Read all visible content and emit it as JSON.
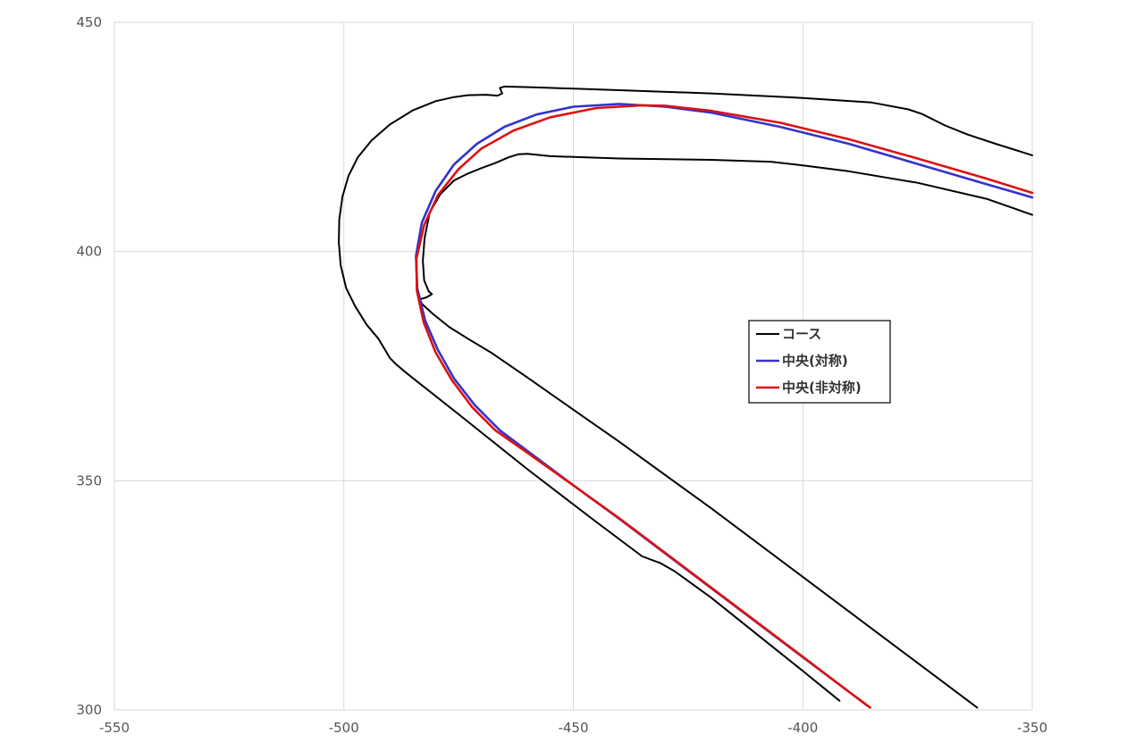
{
  "chart_data": {
    "type": "line",
    "xlim": [
      -550,
      -350
    ],
    "ylim": [
      300,
      450
    ],
    "x_ticks": [
      "-550",
      "-500",
      "-450",
      "-400",
      "-350"
    ],
    "y_ticks": [
      "450",
      "400",
      "350",
      "300"
    ],
    "grid": true,
    "legend_position": "center-right",
    "series": [
      {
        "name": "コース",
        "color": "#000000",
        "segments": [
          [
            [
              -350,
              421
            ],
            [
              -358,
              423.5
            ],
            [
              -364,
              425.5
            ],
            [
              -369,
              427.5
            ],
            [
              -374,
              430
            ],
            [
              -377,
              431
            ],
            [
              -385,
              432.5
            ],
            [
              -400,
              433.5
            ],
            [
              -420,
              434.5
            ],
            [
              -440,
              435.2
            ],
            [
              -458,
              435.8
            ],
            [
              -465,
              436
            ],
            [
              -466,
              435.7
            ],
            [
              -465.5,
              434.5
            ],
            [
              -466.5,
              434
            ],
            [
              -469,
              434.2
            ],
            [
              -473,
              434.1
            ],
            [
              -476,
              433.7
            ],
            [
              -480,
              432.8
            ],
            [
              -485,
              430.8
            ],
            [
              -490,
              427.7
            ],
            [
              -494,
              424.2
            ],
            [
              -497,
              420.5
            ],
            [
              -499,
              416.5
            ],
            [
              -500.3,
              412
            ],
            [
              -501,
              407
            ],
            [
              -501.1,
              402
            ],
            [
              -500.7,
              397
            ],
            [
              -499.5,
              392
            ],
            [
              -497.5,
              388
            ],
            [
              -495,
              384
            ],
            [
              -492.5,
              381
            ],
            [
              -491,
              378.5
            ],
            [
              -490,
              376.8
            ],
            [
              -488.5,
              375.3
            ],
            [
              -486,
              373.2
            ],
            [
              -475,
              364.5
            ],
            [
              -460,
              352.5
            ],
            [
              -445,
              341
            ],
            [
              -435,
              333.5
            ],
            [
              -431,
              332
            ],
            [
              -428,
              330.3
            ],
            [
              -420,
              324.5
            ],
            [
              -410,
              316.5
            ],
            [
              -400,
              308.5
            ],
            [
              -392,
              302
            ]
          ],
          [
            [
              -350,
              408
            ],
            [
              -360,
              411.5
            ],
            [
              -375,
              415
            ],
            [
              -390,
              417.5
            ],
            [
              -400,
              418.8
            ],
            [
              -407,
              419.6
            ],
            [
              -420,
              420
            ],
            [
              -440,
              420.3
            ],
            [
              -455,
              420.8
            ],
            [
              -460,
              421.3
            ],
            [
              -462,
              421.2
            ],
            [
              -464,
              420.6
            ],
            [
              -467,
              419.3
            ],
            [
              -470,
              418.2
            ],
            [
              -473,
              417
            ],
            [
              -476,
              415.5
            ],
            [
              -479,
              412.5
            ],
            [
              -481.3,
              408.5
            ],
            [
              -482.4,
              403
            ],
            [
              -482.8,
              398
            ],
            [
              -482.5,
              393.7
            ],
            [
              -481.5,
              391.3
            ],
            [
              -480.8,
              390.7
            ],
            [
              -482,
              390
            ],
            [
              -483.4,
              389.6
            ],
            [
              -483,
              388.6
            ],
            [
              -480.5,
              386.3
            ],
            [
              -477,
              383.5
            ],
            [
              -473,
              381
            ],
            [
              -468,
              378
            ],
            [
              -460,
              372.5
            ],
            [
              -450,
              365.5
            ],
            [
              -440,
              358.5
            ],
            [
              -420,
              344
            ],
            [
              -400,
              329
            ],
            [
              -380,
              314
            ],
            [
              -370,
              306.5
            ],
            [
              -362,
              300.5
            ]
          ]
        ]
      },
      {
        "name": "中央(対称)",
        "color": "#3333cc",
        "points": [
          [
            -350,
            411.8
          ],
          [
            -360,
            414.7
          ],
          [
            -375,
            419.1
          ],
          [
            -390,
            423.5
          ],
          [
            -405,
            427.2
          ],
          [
            -420,
            430.3
          ],
          [
            -430,
            431.6
          ],
          [
            -440,
            432.2
          ],
          [
            -450,
            431.6
          ],
          [
            -458,
            429.9
          ],
          [
            -465,
            427.2
          ],
          [
            -471,
            423.5
          ],
          [
            -476,
            419
          ],
          [
            -480,
            413.2
          ],
          [
            -483,
            406.3
          ],
          [
            -484.3,
            399
          ],
          [
            -484,
            392
          ],
          [
            -482.3,
            385
          ],
          [
            -479.5,
            378.5
          ],
          [
            -476,
            372.3
          ],
          [
            -471.5,
            366.5
          ],
          [
            -466,
            361
          ],
          [
            -460,
            356.5
          ],
          [
            -450,
            349
          ],
          [
            -440,
            341.7
          ],
          [
            -420,
            326.6
          ],
          [
            -400,
            311.5
          ],
          [
            -390,
            304
          ],
          [
            -386,
            301
          ]
        ]
      },
      {
        "name": "中央(非対称)",
        "color": "#dd1111",
        "points": [
          [
            -350,
            412.8
          ],
          [
            -360,
            415.9
          ],
          [
            -375,
            420.3
          ],
          [
            -390,
            424.5
          ],
          [
            -405,
            428.1
          ],
          [
            -420,
            430.7
          ],
          [
            -430,
            431.8
          ],
          [
            -435,
            431.9
          ],
          [
            -445,
            431.3
          ],
          [
            -455,
            429.3
          ],
          [
            -463,
            426.4
          ],
          [
            -470,
            422.5
          ],
          [
            -475,
            418
          ],
          [
            -479.5,
            412.3
          ],
          [
            -482.5,
            405.8
          ],
          [
            -484.2,
            398.5
          ],
          [
            -484.1,
            391.5
          ],
          [
            -482.6,
            384.5
          ],
          [
            -480,
            378
          ],
          [
            -476.5,
            372
          ],
          [
            -472,
            366
          ],
          [
            -467,
            361
          ],
          [
            -461,
            356.8
          ],
          [
            -450,
            349
          ],
          [
            -440,
            341.8
          ],
          [
            -420,
            326.7
          ],
          [
            -400,
            311.6
          ],
          [
            -390,
            304
          ],
          [
            -385.3,
            300.5
          ]
        ]
      }
    ]
  }
}
